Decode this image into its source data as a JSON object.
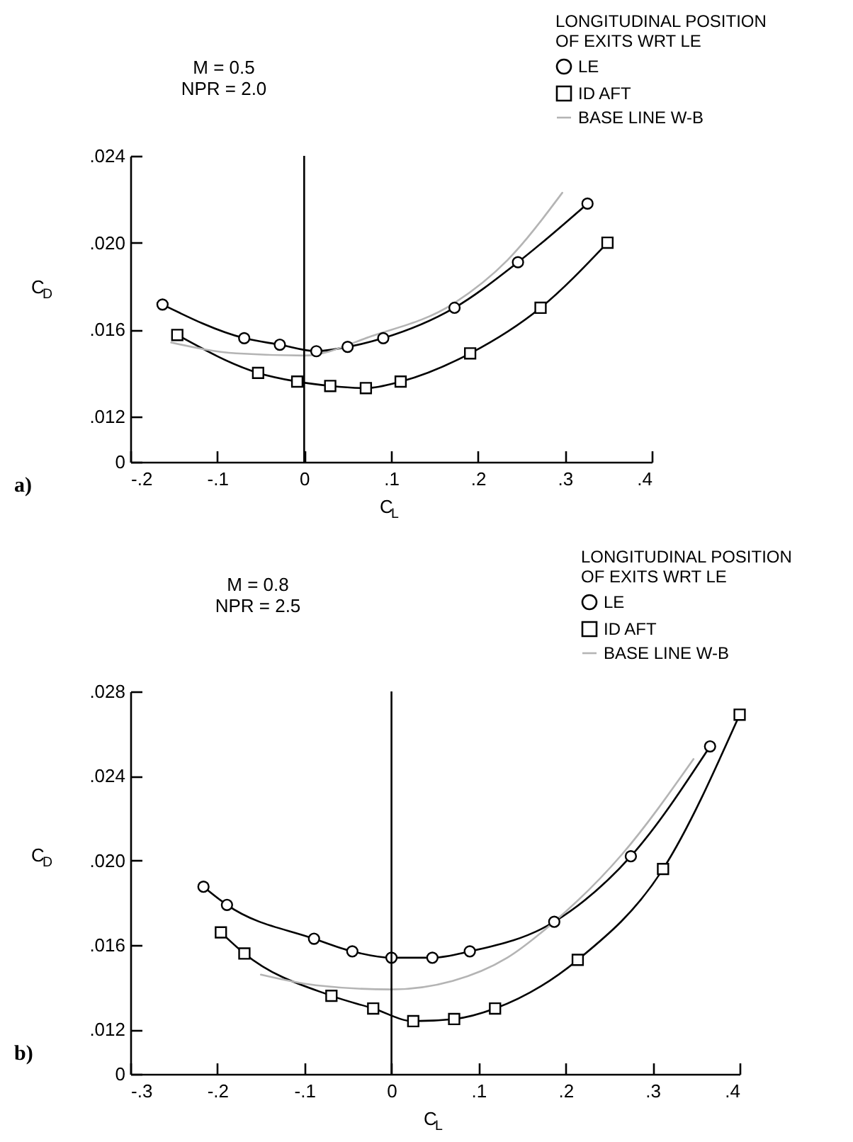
{
  "chart_data": [
    {
      "type": "line",
      "xlabel": "C$_{L}$",
      "ylabel": "C$_{D}$",
      "legend_title": "LONGITUDINAL POSITION\nOF EXITS WRT LE",
      "legend": "top right",
      "annotations": [
        "M = 0.5",
        "NPR = 2.0",
        "a)"
      ],
      "xlim": [
        -0.2,
        0.4
      ],
      "xticks": [
        {
          "value": -0.2,
          "label": "-.2"
        },
        {
          "value": -0.1,
          "label": "-.1"
        },
        0,
        {
          "value": 0.1,
          "label": ".1"
        },
        {
          "value": 0.2,
          "label": ".2"
        },
        {
          "value": 0.3,
          "label": ".3"
        },
        {
          "value": 0.4,
          "label": ".4"
        }
      ],
      "ylim": [
        0.0099,
        0.024
      ],
      "yticks": [
        {
          "value": 0.0099,
          "label": "0"
        },
        {
          "value": 0.012,
          "label": ".012"
        },
        {
          "value": 0.016,
          "label": ".016"
        },
        {
          "value": 0.02,
          "label": ".020"
        },
        {
          "value": 0.024,
          "label": ".024"
        }
      ],
      "ref_lines": [
        {
          "axis": "x",
          "value": 0,
          "color": "#000000"
        }
      ],
      "series": [
        {
          "name": "LE",
          "color": "#000000",
          "marker": "circle",
          "x": [
            -0.163,
            -0.069,
            -0.028,
            0.014,
            0.05,
            0.091,
            0.173,
            0.246,
            0.326
          ],
          "values": [
            0.01715,
            0.0156,
            0.0153,
            0.015,
            0.0152,
            0.0156,
            0.017,
            0.0191,
            0.0218
          ]
        },
        {
          "name": "ID AFT",
          "color": "#000000",
          "marker": "square",
          "x": [
            -0.146,
            -0.053,
            -0.008,
            0.03,
            0.071,
            0.111,
            0.191,
            0.272,
            0.349
          ],
          "values": [
            0.01575,
            0.014,
            0.0136,
            0.0134,
            0.0133,
            0.0136,
            0.0149,
            0.017,
            0.02
          ]
        },
        {
          "name": "BASE LINE W-B",
          "color": "#b4b4b4",
          "marker": "none",
          "x": [
            -0.153,
            -0.078,
            0,
            0.078,
            0.172,
            0.234,
            0.297
          ],
          "values": [
            0.0154,
            0.0149,
            0.0148,
            0.0157,
            0.0172,
            0.0192,
            0.0223
          ]
        }
      ]
    },
    {
      "type": "line",
      "xlabel": "C$_{L}$",
      "ylabel": "C$_{D}$",
      "legend_title": "LONGITUDINAL POSITION\nOF EXITS WRT LE",
      "legend": "top right",
      "annotations": [
        "M = 0.8",
        "NPR = 2.5",
        "b)"
      ],
      "xlim": [
        -0.3,
        0.4
      ],
      "xticks": [
        {
          "value": -0.3,
          "label": "-.3"
        },
        {
          "value": -0.2,
          "label": "-.2"
        },
        {
          "value": -0.1,
          "label": "-.1"
        },
        0,
        {
          "value": 0.1,
          "label": ".1"
        },
        {
          "value": 0.2,
          "label": ".2"
        },
        {
          "value": 0.3,
          "label": ".3"
        },
        {
          "value": 0.4,
          "label": ".4"
        }
      ],
      "ylim": [
        0.0099,
        0.028
      ],
      "yticks": [
        {
          "value": 0.0099,
          "label": "0"
        },
        {
          "value": 0.012,
          "label": ".012"
        },
        {
          "value": 0.016,
          "label": ".016"
        },
        {
          "value": 0.02,
          "label": ".020"
        },
        {
          "value": 0.024,
          "label": ".024"
        },
        {
          "value": 0.028,
          "label": ".028"
        }
      ],
      "ref_lines": [
        {
          "axis": "x",
          "value": 0,
          "color": "#000000"
        }
      ],
      "series": [
        {
          "name": "LE",
          "color": "#000000",
          "marker": "circle",
          "x": [
            -0.216,
            -0.189,
            -0.089,
            -0.045,
            0,
            0.047,
            0.09,
            0.187,
            0.275,
            0.366
          ],
          "values": [
            0.01876,
            0.0179,
            0.0163,
            0.0157,
            0.0154,
            0.0154,
            0.0157,
            0.0171,
            0.0202,
            0.0254
          ]
        },
        {
          "name": "ID AFT",
          "color": "#000000",
          "marker": "square",
          "x": [
            -0.196,
            -0.169,
            -0.069,
            -0.021,
            0.025,
            0.072,
            0.119,
            0.214,
            0.312,
            0.4
          ],
          "values": [
            0.0166,
            0.0156,
            0.0136,
            0.013,
            0.0124,
            0.0125,
            0.013,
            0.0153,
            0.0196,
            0.0269
          ]
        },
        {
          "name": "BASE LINE W-B",
          "color": "#b4b4b4",
          "marker": "none",
          "x": [
            -0.15,
            -0.087,
            0,
            0.07,
            0.133,
            0.184,
            0.265,
            0.347
          ],
          "values": [
            0.0146,
            0.0141,
            0.0139,
            0.0143,
            0.0154,
            0.017,
            0.0203,
            0.0248
          ]
        }
      ]
    }
  ]
}
